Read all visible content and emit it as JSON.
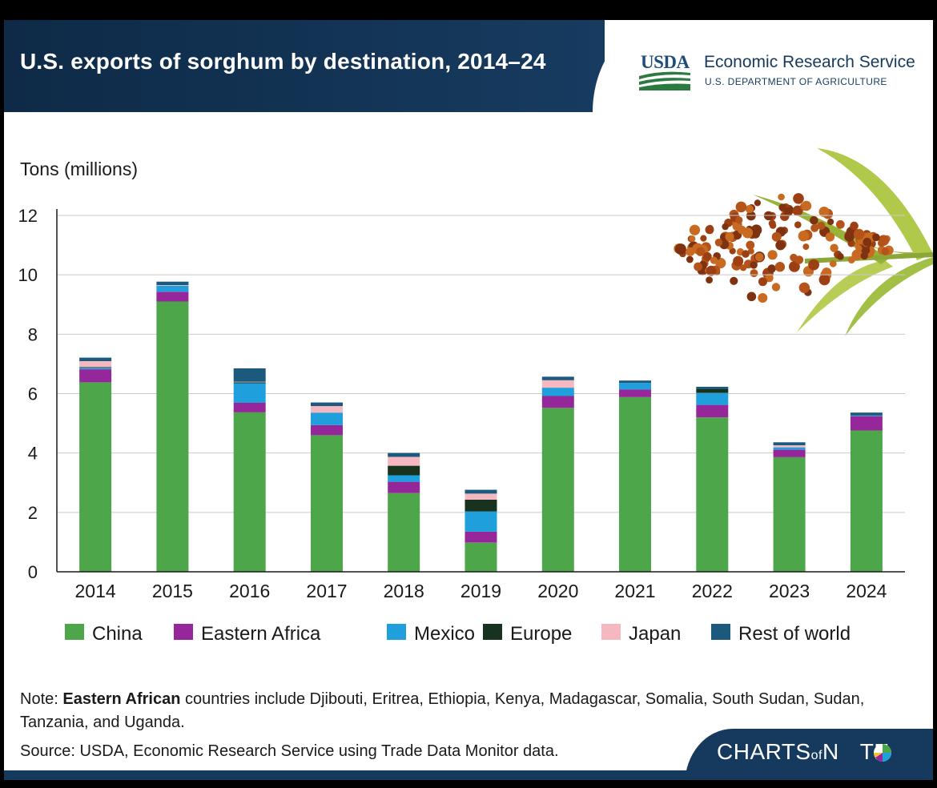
{
  "header": {
    "title": "U.S. exports of sorghum by destination, 2014–24",
    "agency_logo": "USDA",
    "agency_name": "Economic Research Service",
    "department": "U.S. DEPARTMENT OF AGRICULTURE"
  },
  "footer": {
    "note_prefix": "Note: ",
    "note_bold": "Eastern African",
    "note_rest": " countries include Djibouti, Eritrea, Ethiopia, Kenya, Madagascar, Somalia, South Sudan, Sudan, Tanzania, and Uganda.",
    "source": "Source: USDA, Economic Research Service using Trade Data Monitor data.",
    "brand_a": "CHARTS",
    "brand_of": "of",
    "brand_b": "N",
    "brand_c": "TE"
  },
  "icons": [
    "usda-logo-icon",
    "sorghum-plant-icon",
    "pie-icon"
  ],
  "chart_data": {
    "type": "bar",
    "stacked": true,
    "ylabel": "Tons (millions)",
    "xlabel": "",
    "ylim": [
      0,
      12
    ],
    "yticks": [
      0,
      2,
      4,
      6,
      8,
      10,
      12
    ],
    "grid": true,
    "legend_position": "bottom",
    "categories": [
      "2014",
      "2015",
      "2016",
      "2017",
      "2018",
      "2019",
      "2020",
      "2021",
      "2022",
      "2023",
      "2024"
    ],
    "series": [
      {
        "name": "China",
        "color": "#4ea64a",
        "values": [
          6.38,
          9.1,
          5.37,
          4.6,
          2.65,
          0.98,
          5.52,
          5.88,
          5.2,
          3.86,
          4.76
        ]
      },
      {
        "name": "Eastern Africa",
        "color": "#96279a",
        "values": [
          0.44,
          0.33,
          0.32,
          0.34,
          0.38,
          0.37,
          0.4,
          0.26,
          0.42,
          0.25,
          0.48
        ]
      },
      {
        "name": "Mexico",
        "color": "#1f9fdc",
        "values": [
          0.05,
          0.2,
          0.66,
          0.42,
          0.22,
          0.68,
          0.28,
          0.22,
          0.4,
          0.08,
          0.02
        ]
      },
      {
        "name": "Europe",
        "color": "#183220",
        "values": [
          0.02,
          0.0,
          0.03,
          0.0,
          0.32,
          0.4,
          0.0,
          0.0,
          0.13,
          0.0,
          0.0
        ]
      },
      {
        "name": "Japan",
        "color": "#f6b8c0",
        "values": [
          0.2,
          0.02,
          0.02,
          0.22,
          0.3,
          0.2,
          0.25,
          0.0,
          0.0,
          0.07,
          0.0
        ]
      },
      {
        "name": "Rest of world",
        "color": "#1b5a7d",
        "values": [
          0.12,
          0.12,
          0.45,
          0.12,
          0.13,
          0.13,
          0.12,
          0.08,
          0.08,
          0.1,
          0.1
        ]
      }
    ]
  }
}
